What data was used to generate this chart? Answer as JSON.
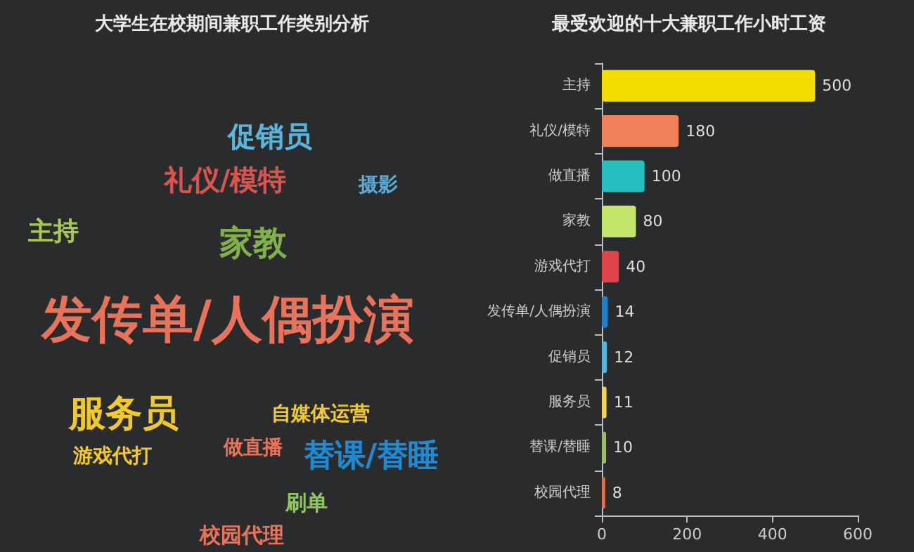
{
  "chart_data": [
    {
      "type": "other",
      "title": "大学生在校期间兼职工作类别分析",
      "annotations": [
        "促销员",
        "礼仪/模特",
        "摄影",
        "主持",
        "家教",
        "发传单/人偶扮演",
        "服务员",
        "自媒体运营",
        "游戏代打",
        "做直播",
        "替课/替睡",
        "刷单",
        "校园代理"
      ]
    },
    {
      "type": "bar",
      "orientation": "horizontal",
      "title": "最受欢迎的十大兼职工作小时工资",
      "categories": [
        "主持",
        "礼仪/模特",
        "做直播",
        "家教",
        "游戏代打",
        "发传单/人偶扮演",
        "促销员",
        "服务员",
        "替课/替睡",
        "校园代理"
      ],
      "values": [
        500,
        180,
        100,
        80,
        40,
        14,
        12,
        11,
        10,
        8
      ],
      "colors": [
        "#f5dc00",
        "#f0805a",
        "#26c0c0",
        "#c5e46a",
        "#e0434a",
        "#1e7fc8",
        "#5ab4dc",
        "#f0d060",
        "#9cba6a",
        "#e07050"
      ],
      "xlim": [
        0,
        600
      ],
      "xticks": [
        0,
        200,
        400,
        600
      ],
      "data_labels": true,
      "grid": false
    }
  ]
}
